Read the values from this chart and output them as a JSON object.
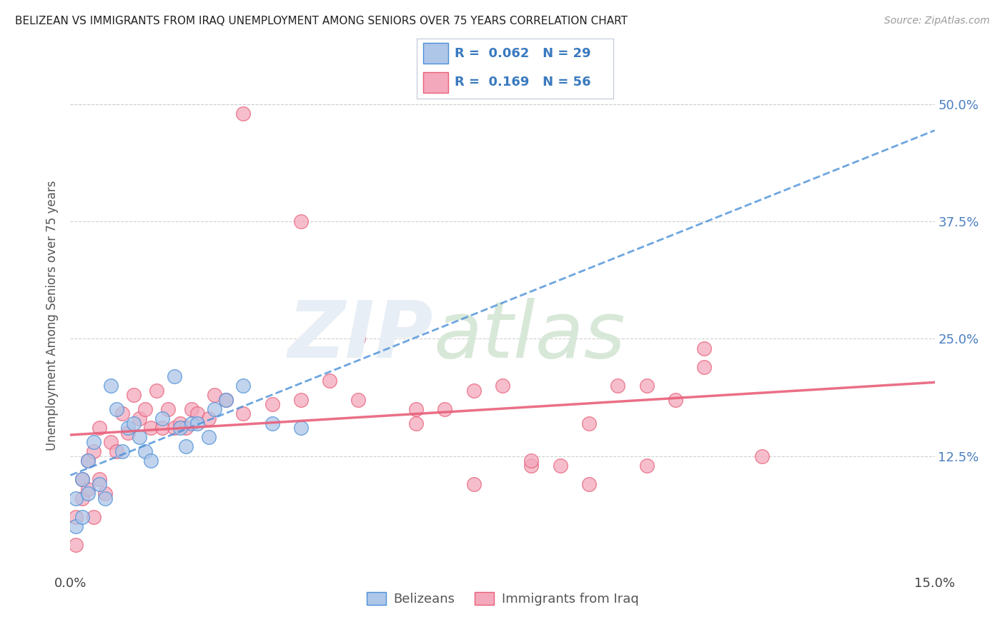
{
  "title": "BELIZEAN VS IMMIGRANTS FROM IRAQ UNEMPLOYMENT AMONG SENIORS OVER 75 YEARS CORRELATION CHART",
  "source": "Source: ZipAtlas.com",
  "ylabel": "Unemployment Among Seniors over 75 years",
  "xlim": [
    0.0,
    0.15
  ],
  "ylim": [
    0.0,
    0.55
  ],
  "yticks": [
    0.0,
    0.125,
    0.25,
    0.375,
    0.5
  ],
  "ytick_labels": [
    "",
    "12.5%",
    "25.0%",
    "37.5%",
    "50.0%"
  ],
  "legend_r1": "R =  0.062",
  "legend_n1": "N = 29",
  "legend_r2": "R =  0.169",
  "legend_n2": "N = 56",
  "belizean_color": "#aec6e8",
  "iraq_color": "#f4a8bc",
  "trendline_belizean_color": "#4a90d9",
  "trendline_iraq_color": "#e8607a",
  "belizean_x": [
    0.001,
    0.001,
    0.002,
    0.002,
    0.003,
    0.003,
    0.004,
    0.005,
    0.006,
    0.007,
    0.008,
    0.009,
    0.01,
    0.011,
    0.012,
    0.013,
    0.014,
    0.016,
    0.018,
    0.019,
    0.02,
    0.021,
    0.022,
    0.024,
    0.025,
    0.027,
    0.03,
    0.035,
    0.04
  ],
  "belizean_y": [
    0.05,
    0.08,
    0.06,
    0.1,
    0.12,
    0.085,
    0.14,
    0.095,
    0.08,
    0.2,
    0.175,
    0.13,
    0.155,
    0.16,
    0.145,
    0.13,
    0.12,
    0.165,
    0.21,
    0.155,
    0.135,
    0.16,
    0.16,
    0.145,
    0.175,
    0.185,
    0.2,
    0.16,
    0.155
  ],
  "iraq_x": [
    0.001,
    0.001,
    0.002,
    0.002,
    0.003,
    0.003,
    0.004,
    0.004,
    0.005,
    0.005,
    0.006,
    0.007,
    0.008,
    0.009,
    0.01,
    0.011,
    0.012,
    0.013,
    0.014,
    0.015,
    0.016,
    0.017,
    0.018,
    0.019,
    0.02,
    0.021,
    0.022,
    0.024,
    0.025,
    0.027,
    0.03,
    0.035,
    0.04,
    0.045,
    0.05,
    0.06,
    0.065,
    0.07,
    0.075,
    0.08,
    0.085,
    0.09,
    0.095,
    0.1,
    0.105,
    0.11,
    0.12,
    0.03,
    0.04,
    0.05,
    0.06,
    0.07,
    0.08,
    0.09,
    0.1,
    0.11
  ],
  "iraq_y": [
    0.03,
    0.06,
    0.08,
    0.1,
    0.09,
    0.12,
    0.06,
    0.13,
    0.1,
    0.155,
    0.085,
    0.14,
    0.13,
    0.17,
    0.15,
    0.19,
    0.165,
    0.175,
    0.155,
    0.195,
    0.155,
    0.175,
    0.155,
    0.16,
    0.155,
    0.175,
    0.17,
    0.165,
    0.19,
    0.185,
    0.17,
    0.18,
    0.185,
    0.205,
    0.185,
    0.175,
    0.175,
    0.195,
    0.2,
    0.115,
    0.115,
    0.16,
    0.2,
    0.2,
    0.185,
    0.22,
    0.125,
    0.49,
    0.375,
    0.25,
    0.16,
    0.095,
    0.12,
    0.095,
    0.115,
    0.24
  ]
}
